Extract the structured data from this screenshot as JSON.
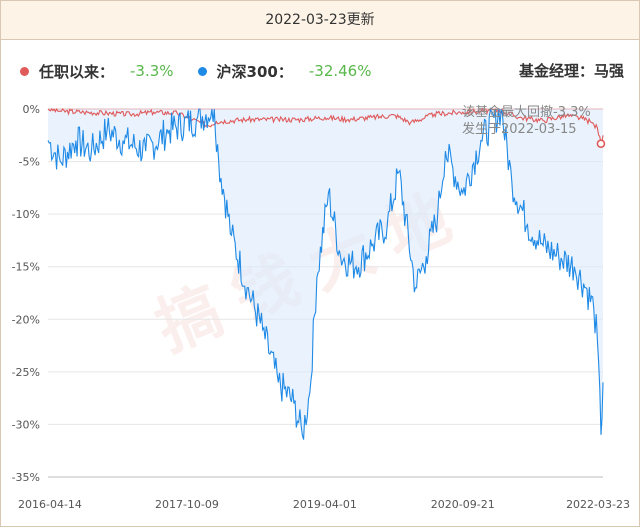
{
  "header": {
    "title": "2022-03-23更新"
  },
  "legend": {
    "fund": {
      "name": "任职以来：",
      "value": "-3.3%",
      "color": "#e05a5a"
    },
    "index": {
      "name": "沪深300：",
      "value": "-32.46%",
      "color": "#1f8ae6"
    }
  },
  "manager": {
    "text": "基金经理：马强"
  },
  "annotation": {
    "line1": "该基金最大回撤-3.3%",
    "line2": "发生于2022-03-15"
  },
  "watermark": "搞钱大地",
  "chart_data": {
    "type": "line",
    "xlabel": "",
    "ylabel": "",
    "ylim": [
      -35,
      0
    ],
    "grid": true,
    "x_ticks": [
      "2016-04-14",
      "2017-10-09",
      "2019-04-01",
      "2020-09-21",
      "2022-03-23"
    ],
    "y_ticks": [
      "0%",
      "-5%",
      "-10%",
      "-15%",
      "-20%",
      "-25%",
      "-30%",
      "-35%"
    ],
    "series": [
      {
        "name": "任职以来",
        "color": "#e05a5a",
        "x": [
          "2016-04-14",
          "2016-06-01",
          "2016-09-01",
          "2016-12-01",
          "2017-03-01",
          "2017-06-01",
          "2017-09-01",
          "2017-11-01",
          "2018-01-01",
          "2018-02-01",
          "2018-06-01",
          "2018-10-01",
          "2019-01-01",
          "2019-04-01",
          "2019-07-01",
          "2019-10-01",
          "2020-01-01",
          "2020-03-01",
          "2020-06-01",
          "2020-09-21",
          "2020-12-01",
          "2021-02-10",
          "2021-05-01",
          "2021-08-01",
          "2021-11-01",
          "2022-01-01",
          "2022-02-01",
          "2022-03-01",
          "2022-03-15",
          "2022-03-23"
        ],
        "values": [
          0,
          -0.2,
          -0.3,
          -0.4,
          -0.5,
          -0.3,
          -0.4,
          -1.0,
          -1.6,
          -1.2,
          -1.0,
          -1.0,
          -1.0,
          -0.8,
          -1.0,
          -0.8,
          -0.6,
          -1.3,
          -0.5,
          -0.3,
          -0.2,
          -0.1,
          -0.8,
          -1.1,
          -0.6,
          -0.9,
          -1.2,
          -1.8,
          -3.3,
          -2.5
        ]
      },
      {
        "name": "沪深300",
        "color": "#1f8ae6",
        "x": [
          "2016-04-14",
          "2016-06-01",
          "2016-08-01",
          "2016-10-01",
          "2016-12-01",
          "2017-02-01",
          "2017-05-01",
          "2017-08-01",
          "2017-11-15",
          "2018-01-24",
          "2018-02-10",
          "2018-04-01",
          "2018-06-01",
          "2018-08-01",
          "2018-10-01",
          "2018-12-01",
          "2019-01-03",
          "2019-02-01",
          "2019-03-01",
          "2019-04-15",
          "2019-06-01",
          "2019-08-01",
          "2019-10-01",
          "2019-12-01",
          "2020-01-15",
          "2020-03-20",
          "2020-05-01",
          "2020-06-15",
          "2020-07-15",
          "2020-09-21",
          "2020-12-01",
          "2021-02-18",
          "2021-04-01",
          "2021-06-01",
          "2021-08-01",
          "2021-10-01",
          "2021-12-01",
          "2022-01-15",
          "2022-02-15",
          "2022-03-01",
          "2022-03-15",
          "2022-03-23"
        ],
        "values": [
          -3,
          -5,
          -3,
          -4,
          -2,
          -3,
          -4,
          -2,
          -1,
          0,
          -5,
          -12,
          -17,
          -21,
          -26,
          -28,
          -31,
          -27,
          -16,
          -8,
          -14,
          -15,
          -13,
          -11,
          -6,
          -17,
          -14,
          -10,
          -4,
          -8,
          -3,
          0,
          -7,
          -11,
          -13,
          -14,
          -15,
          -17,
          -19,
          -22,
          -31,
          -26
        ]
      }
    ]
  }
}
